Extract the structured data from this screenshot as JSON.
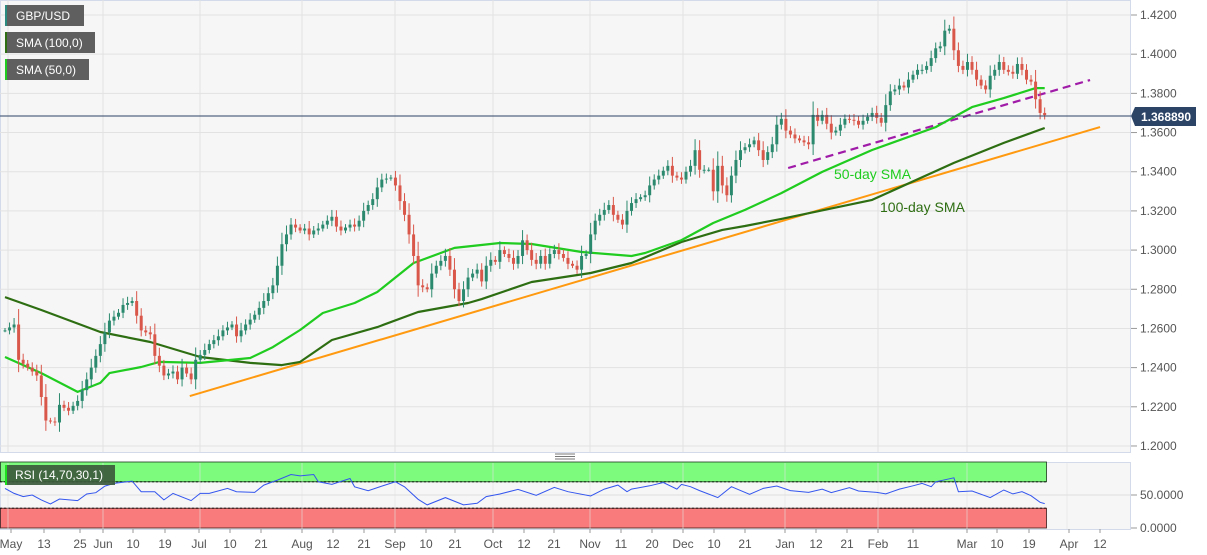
{
  "header": {
    "symbol": "GBP/USD",
    "sma100_label": "SMA (100,0)",
    "sma50_label": "SMA (50,0)"
  },
  "current_price": "1.368890",
  "annotations": {
    "sma50": "50-day SMA",
    "sma100": "100-day SMA"
  },
  "rsi_panel": {
    "label": "RSI (14,70,30,1)",
    "y_ticks": [
      "50.0000",
      "0.0000"
    ]
  },
  "colors": {
    "up": "#2b8a6e",
    "down": "#d9574a",
    "sma50": "#1fcc1f",
    "sma100": "#2e6e12",
    "support": "#ff9a10",
    "broken_support": "#a01ca8",
    "price_line": "#2c4466",
    "rsi_line": "#3355ee",
    "overbought": "#7dfb7d",
    "oversold": "#fa7b7b"
  },
  "chart_data": {
    "type": "candlestick",
    "title": "GBP/USD",
    "xlabel": "",
    "ylabel": "",
    "ylim": [
      1.1969,
      1.4277
    ],
    "y_ticks": [
      "1.4200",
      "1.4000",
      "1.3800",
      "1.3600",
      "1.3400",
      "1.3200",
      "1.3000",
      "1.2800",
      "1.2600",
      "1.2400",
      "1.2200",
      "1.2000"
    ],
    "x_tick_labels": [
      "May",
      "13",
      "25",
      "Jun",
      "10",
      "19",
      "Jul",
      "10",
      "21",
      "Aug",
      "12",
      "21",
      "Sep",
      "10",
      "21",
      "Oct",
      "12",
      "21",
      "Nov",
      "11",
      "20",
      "Dec",
      "10",
      "21",
      "Jan",
      "12",
      "21",
      "Feb",
      "11",
      "Mar",
      "10",
      "19",
      "Apr",
      "12"
    ],
    "x_unit": "trading days since start",
    "closes": [
      [
        0,
        1.259
      ],
      [
        2,
        1.262
      ],
      [
        3,
        1.244
      ],
      [
        5,
        1.24
      ],
      [
        7,
        1.236
      ],
      [
        8,
        1.225
      ],
      [
        9,
        1.213
      ],
      [
        11,
        1.212
      ],
      [
        12,
        1.221
      ],
      [
        14,
        1.218
      ],
      [
        16,
        1.223
      ],
      [
        18,
        1.234
      ],
      [
        19,
        1.24
      ],
      [
        21,
        1.252
      ],
      [
        22,
        1.258
      ],
      [
        23,
        1.264
      ],
      [
        25,
        1.268
      ],
      [
        26,
        1.272
      ],
      [
        28,
        1.274
      ],
      [
        30,
        1.259
      ],
      [
        32,
        1.257
      ],
      [
        33,
        1.246
      ],
      [
        35,
        1.236
      ],
      [
        37,
        1.238
      ],
      [
        38,
        1.234
      ],
      [
        39,
        1.24
      ],
      [
        41,
        1.234
      ],
      [
        42,
        1.244
      ],
      [
        44,
        1.249
      ],
      [
        45,
        1.252
      ],
      [
        47,
        1.256
      ],
      [
        48,
        1.259
      ],
      [
        50,
        1.262
      ],
      [
        51,
        1.256
      ],
      [
        53,
        1.262
      ],
      [
        55,
        1.267
      ],
      [
        57,
        1.274
      ],
      [
        58,
        1.278
      ],
      [
        59,
        1.282
      ],
      [
        60,
        1.292
      ],
      [
        61,
        1.303
      ],
      [
        63,
        1.313
      ],
      [
        65,
        1.31
      ],
      [
        66,
        1.311
      ],
      [
        67,
        1.308
      ],
      [
        68,
        1.31
      ],
      [
        69,
        1.311
      ],
      [
        71,
        1.315
      ],
      [
        72,
        1.317
      ],
      [
        73,
        1.312
      ],
      [
        74,
        1.31
      ],
      [
        76,
        1.313
      ],
      [
        77,
        1.312
      ],
      [
        78,
        1.315
      ],
      [
        79,
        1.32
      ],
      [
        81,
        1.326
      ],
      [
        82,
        1.332
      ],
      [
        83,
        1.336
      ],
      [
        85,
        1.337
      ],
      [
        86,
        1.333
      ],
      [
        87,
        1.325
      ],
      [
        88,
        1.318
      ],
      [
        89,
        1.308
      ],
      [
        90,
        1.297
      ],
      [
        91,
        1.282
      ],
      [
        93,
        1.28
      ],
      [
        94,
        1.288
      ],
      [
        95,
        1.292
      ],
      [
        97,
        1.297
      ],
      [
        98,
        1.29
      ],
      [
        99,
        1.28
      ],
      [
        100,
        1.274
      ],
      [
        101,
        1.28
      ],
      [
        102,
        1.286
      ],
      [
        103,
        1.288
      ],
      [
        104,
        1.29
      ],
      [
        105,
        1.284
      ],
      [
        106,
        1.292
      ],
      [
        107,
        1.295
      ],
      [
        108,
        1.294
      ],
      [
        109,
        1.3
      ],
      [
        111,
        1.296
      ],
      [
        112,
        1.293
      ],
      [
        113,
        1.297
      ],
      [
        114,
        1.305
      ],
      [
        116,
        1.295
      ],
      [
        117,
        1.293
      ],
      [
        118,
        1.297
      ],
      [
        119,
        1.293
      ],
      [
        120,
        1.298
      ],
      [
        121,
        1.3
      ],
      [
        123,
        1.296
      ],
      [
        124,
        1.293
      ],
      [
        125,
        1.292
      ],
      [
        126,
        1.29
      ],
      [
        127,
        1.297
      ],
      [
        128,
        1.298
      ],
      [
        129,
        1.308
      ],
      [
        130,
        1.315
      ],
      [
        131,
        1.318
      ],
      [
        133,
        1.323
      ],
      [
        134,
        1.318
      ],
      [
        136,
        1.313
      ],
      [
        137,
        1.32
      ],
      [
        138,
        1.324
      ],
      [
        139,
        1.326
      ],
      [
        141,
        1.328
      ],
      [
        142,
        1.333
      ],
      [
        143,
        1.336
      ],
      [
        144,
        1.338
      ],
      [
        146,
        1.343
      ],
      [
        147,
        1.338
      ],
      [
        149,
        1.336
      ],
      [
        150,
        1.34
      ],
      [
        151,
        1.343
      ],
      [
        152,
        1.351
      ],
      [
        153,
        1.341
      ],
      [
        155,
        1.341
      ],
      [
        156,
        1.33
      ],
      [
        157,
        1.343
      ],
      [
        158,
        1.333
      ],
      [
        159,
        1.328
      ],
      [
        160,
        1.338
      ],
      [
        161,
        1.346
      ],
      [
        162,
        1.351
      ],
      [
        164,
        1.354
      ],
      [
        165,
        1.356
      ],
      [
        166,
        1.351
      ],
      [
        167,
        1.346
      ],
      [
        169,
        1.354
      ],
      [
        170,
        1.364
      ],
      [
        171,
        1.367
      ],
      [
        172,
        1.361
      ],
      [
        174,
        1.357
      ],
      [
        175,
        1.356
      ],
      [
        177,
        1.354
      ],
      [
        178,
        1.369
      ],
      [
        179,
        1.366
      ],
      [
        180,
        1.369
      ],
      [
        182,
        1.36
      ],
      [
        183,
        1.361
      ],
      [
        185,
        1.367
      ],
      [
        187,
        1.366
      ],
      [
        188,
        1.364
      ],
      [
        189,
        1.366
      ],
      [
        191,
        1.37
      ],
      [
        193,
        1.365
      ],
      [
        194,
        1.374
      ],
      [
        195,
        1.381
      ],
      [
        196,
        1.382
      ],
      [
        197,
        1.384
      ],
      [
        198,
        1.383
      ],
      [
        199,
        1.387
      ],
      [
        201,
        1.392
      ],
      [
        202,
        1.392
      ],
      [
        203,
        1.394
      ],
      [
        204,
        1.398
      ],
      [
        205,
        1.403
      ],
      [
        206,
        1.404
      ],
      [
        207,
        1.412
      ],
      [
        208,
        1.413
      ],
      [
        209,
        1.402
      ],
      [
        210,
        1.394
      ],
      [
        211,
        1.392
      ],
      [
        212,
        1.396
      ],
      [
        213,
        1.392
      ],
      [
        214,
        1.387
      ],
      [
        215,
        1.384
      ],
      [
        216,
        1.382
      ],
      [
        217,
        1.389
      ],
      [
        218,
        1.392
      ],
      [
        219,
        1.396
      ],
      [
        220,
        1.392
      ],
      [
        221,
        1.391
      ],
      [
        222,
        1.39
      ],
      [
        223,
        1.395
      ],
      [
        224,
        1.392
      ],
      [
        225,
        1.387
      ],
      [
        226,
        1.386
      ],
      [
        227,
        1.377
      ],
      [
        228,
        1.37
      ],
      [
        229,
        1.3689
      ]
    ],
    "series": [
      {
        "name": "SMA (100,0)",
        "points": [
          [
            0,
            1.276
          ],
          [
            8,
            1.2694
          ],
          [
            21,
            1.2582
          ],
          [
            32,
            1.2531
          ],
          [
            43,
            1.2454
          ],
          [
            54,
            1.2424
          ],
          [
            61,
            1.2413
          ],
          [
            65,
            1.2429
          ],
          [
            72,
            1.2541
          ],
          [
            82,
            1.2607
          ],
          [
            91,
            1.2684
          ],
          [
            102,
            1.273
          ],
          [
            105,
            1.275
          ],
          [
            116,
            1.2837
          ],
          [
            129,
            1.2883
          ],
          [
            138,
            1.2934
          ],
          [
            149,
            1.3041
          ],
          [
            158,
            1.3103
          ],
          [
            163,
            1.3123
          ],
          [
            171,
            1.3159
          ],
          [
            191,
            1.3256
          ],
          [
            209,
            1.3445
          ],
          [
            220,
            1.3547
          ],
          [
            229,
            1.3623
          ]
        ]
      },
      {
        "name": "SMA (50,0)",
        "points": [
          [
            0,
            1.2454
          ],
          [
            8,
            1.2372
          ],
          [
            16,
            1.2276
          ],
          [
            21,
            1.2322
          ],
          [
            23,
            1.2372
          ],
          [
            30,
            1.2403
          ],
          [
            34,
            1.2429
          ],
          [
            43,
            1.2424
          ],
          [
            54,
            1.2449
          ],
          [
            59,
            1.2505
          ],
          [
            65,
            1.2592
          ],
          [
            70,
            1.2679
          ],
          [
            77,
            1.273
          ],
          [
            82,
            1.2786
          ],
          [
            90,
            1.2934
          ],
          [
            99,
            1.3011
          ],
          [
            109,
            1.3036
          ],
          [
            116,
            1.3031
          ],
          [
            127,
            1.299
          ],
          [
            138,
            1.297
          ],
          [
            141,
            1.2985
          ],
          [
            149,
            1.3051
          ],
          [
            156,
            1.3138
          ],
          [
            163,
            1.3205
          ],
          [
            171,
            1.3291
          ],
          [
            180,
            1.3399
          ],
          [
            191,
            1.3511
          ],
          [
            205,
            1.3628
          ],
          [
            213,
            1.373
          ],
          [
            220,
            1.3776
          ],
          [
            227,
            1.3827
          ],
          [
            229,
            1.3827
          ]
        ]
      }
    ],
    "trendlines": [
      {
        "name": "rising support",
        "points": [
          [
            40.7,
            1.2255
          ],
          [
            241.2,
            1.3628
          ]
        ]
      },
      {
        "name": "broken support (dashed)",
        "points": [
          [
            172.5,
            1.3419
          ],
          [
            239,
            1.3868
          ]
        ]
      }
    ],
    "current_level": 1.36889,
    "rsi": {
      "name": "RSI (14,70,30,1)",
      "ylim": [
        0,
        100
      ],
      "levels": [
        70,
        30
      ],
      "values": [
        [
          0,
          60
        ],
        [
          2,
          52.5
        ],
        [
          4,
          47.5
        ],
        [
          6,
          50
        ],
        [
          8,
          42.5
        ],
        [
          10,
          36.5
        ],
        [
          12,
          44
        ],
        [
          16,
          41.5
        ],
        [
          18,
          51.5
        ],
        [
          20,
          53.5
        ],
        [
          22,
          63.5
        ],
        [
          24,
          67.5
        ],
        [
          28,
          71
        ],
        [
          30,
          55
        ],
        [
          33,
          55
        ],
        [
          35,
          42.5
        ],
        [
          37,
          52.5
        ],
        [
          41,
          41.5
        ],
        [
          43,
          52.5
        ],
        [
          45,
          52.5
        ],
        [
          49,
          60
        ],
        [
          51,
          55
        ],
        [
          55,
          54
        ],
        [
          57,
          65
        ],
        [
          60,
          72.5
        ],
        [
          63,
          81
        ],
        [
          65,
          79
        ],
        [
          68,
          81
        ],
        [
          69,
          70
        ],
        [
          72,
          66
        ],
        [
          76,
          75
        ],
        [
          77,
          62.5
        ],
        [
          80,
          56.5
        ],
        [
          83,
          63.5
        ],
        [
          86,
          70
        ],
        [
          88,
          62.5
        ],
        [
          91,
          43.5
        ],
        [
          93,
          35
        ],
        [
          97,
          46
        ],
        [
          101,
          35
        ],
        [
          104,
          37.5
        ],
        [
          106,
          47.5
        ],
        [
          109,
          51.5
        ],
        [
          113,
          58.5
        ],
        [
          117,
          49.5
        ],
        [
          121,
          61.5
        ],
        [
          124,
          55
        ],
        [
          129,
          48.5
        ],
        [
          132,
          59
        ],
        [
          135,
          65
        ],
        [
          137,
          55
        ],
        [
          138,
          59
        ],
        [
          142,
          64
        ],
        [
          145,
          69
        ],
        [
          148,
          59
        ],
        [
          149,
          66
        ],
        [
          151,
          62.6
        ],
        [
          153,
          56.7
        ],
        [
          157,
          46
        ],
        [
          160,
          62.6
        ],
        [
          164,
          51
        ],
        [
          167,
          60
        ],
        [
          170,
          63.6
        ],
        [
          173,
          56.7
        ],
        [
          177,
          54
        ],
        [
          180,
          59
        ],
        [
          182,
          53.7
        ],
        [
          186,
          61
        ],
        [
          188,
          56
        ],
        [
          192,
          54
        ],
        [
          194,
          51.7
        ],
        [
          197,
          59
        ],
        [
          200,
          64
        ],
        [
          202,
          67.5
        ],
        [
          204,
          62.6
        ],
        [
          205,
          70
        ],
        [
          209,
          76
        ],
        [
          210,
          55
        ],
        [
          213,
          56
        ],
        [
          217,
          46
        ],
        [
          220,
          57.6
        ],
        [
          222,
          51.7
        ],
        [
          224,
          55
        ],
        [
          226,
          49
        ],
        [
          228,
          39
        ],
        [
          229,
          37
        ]
      ]
    }
  }
}
